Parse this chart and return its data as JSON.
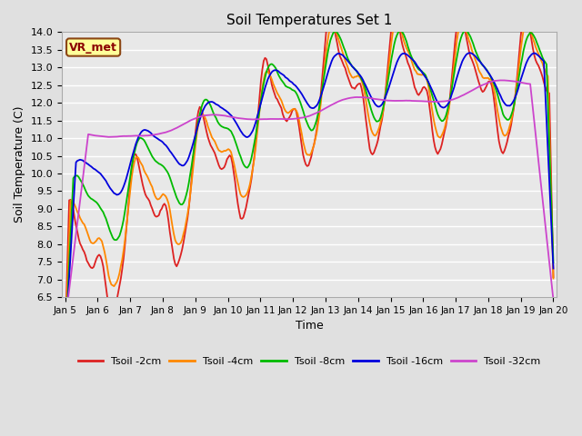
{
  "title": "Soil Temperatures Set 1",
  "xlabel": "Time",
  "ylabel": "Soil Temperature (C)",
  "ylim": [
    6.5,
    14.0
  ],
  "background_color": "#e0e0e0",
  "plot_bg_color": "#e8e8e8",
  "grid_color": "#ffffff",
  "annotation_text": "VR_met",
  "annotation_bg": "#ffff99",
  "annotation_border": "#8B4513",
  "annotation_text_color": "#8B0000",
  "series_colors": {
    "Tsoil -2cm": "#dd2222",
    "Tsoil -4cm": "#ff8800",
    "Tsoil -8cm": "#00bb00",
    "Tsoil -16cm": "#0000dd",
    "Tsoil -32cm": "#cc44cc"
  },
  "xtick_labels": [
    "Jan 5",
    "Jan 6",
    "Jan 7",
    "Jan 8",
    "Jan 9",
    "Jan 10",
    "Jan 11",
    "Jan 12",
    "Jan 13",
    "Jan 14",
    "Jan 15",
    "Jan 16",
    "Jan 17",
    "Jan 18",
    "Jan 19",
    "Jan 20"
  ],
  "yticks": [
    6.5,
    7.0,
    7.5,
    8.0,
    8.5,
    9.0,
    9.5,
    10.0,
    10.5,
    11.0,
    11.5,
    12.0,
    12.5,
    13.0,
    13.5,
    14.0
  ],
  "n_points": 360,
  "seed": 42
}
